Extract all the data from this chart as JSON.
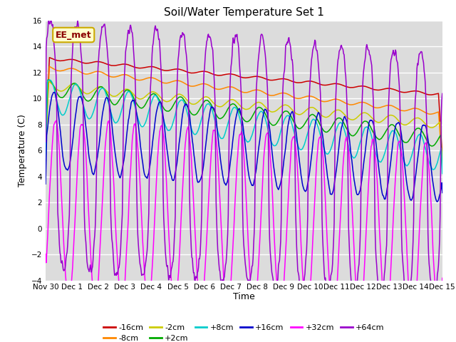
{
  "title": "Soil/Water Temperature Set 1",
  "ylabel": "Temperature (C)",
  "xlabel": "Time",
  "annotation": "EE_met",
  "ylim": [
    -4,
    16
  ],
  "yticks": [
    -4,
    -2,
    0,
    2,
    4,
    6,
    8,
    10,
    12,
    14,
    16
  ],
  "xtick_labels": [
    "Nov 30",
    "Dec 1",
    "Dec 2",
    "Dec 3",
    "Dec 4",
    "Dec 5",
    "Dec 6",
    "Dec 7",
    "Dec 8",
    "Dec 9",
    "Dec 10",
    "Dec 11",
    "Dec 12",
    "Dec 13",
    "Dec 14",
    "Dec 15"
  ],
  "lines": [
    {
      "label": "-16cm",
      "color": "#cc0000"
    },
    {
      "label": "-8cm",
      "color": "#ff8800"
    },
    {
      "label": "-2cm",
      "color": "#cccc00"
    },
    {
      "label": "+2cm",
      "color": "#00aa00"
    },
    {
      "label": "+8cm",
      "color": "#00cccc"
    },
    {
      "label": "+16cm",
      "color": "#0000cc"
    },
    {
      "label": "+32cm",
      "color": "#ff00ff"
    },
    {
      "label": "+64cm",
      "color": "#9900cc"
    }
  ],
  "plot_bg_color": "#dcdcdc",
  "fig_bg_color": "#ffffff",
  "annotation_bg": "#ffffcc",
  "annotation_border": "#ccaa00",
  "grid_color": "#ffffff"
}
